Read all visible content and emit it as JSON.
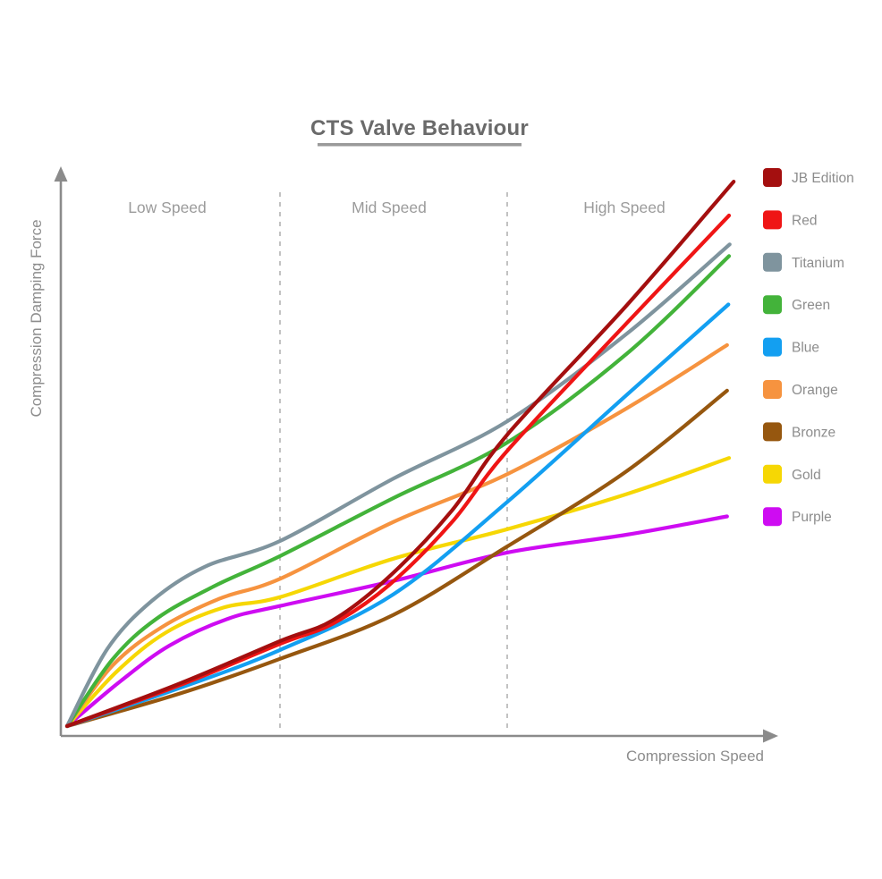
{
  "chart_data": {
    "type": "line",
    "title": "CTS Valve Behaviour",
    "xlabel": "Compression Speed",
    "ylabel": "Compression Damping Force",
    "x_range": [
      0,
      10
    ],
    "y_range": [
      0,
      10
    ],
    "axis_numeric_ticks": "none",
    "grid": false,
    "legend_position": "right",
    "zones": [
      {
        "label": "Low Speed",
        "x_start": 0.0,
        "x_end": 3.22
      },
      {
        "label": "Mid Speed",
        "x_start": 3.22,
        "x_end": 6.65
      },
      {
        "label": "High Speed",
        "x_start": 6.65,
        "x_end": 10.0
      }
    ],
    "zone_divider_x": [
      3.22,
      6.65
    ],
    "series": [
      {
        "name": "JB Edition",
        "color": "#a40f0f",
        "points": [
          [
            0,
            0
          ],
          [
            1.69,
            0.76
          ],
          [
            3.22,
            1.53
          ],
          [
            4.01,
            1.9
          ],
          [
            4.86,
            2.68
          ],
          [
            5.81,
            3.87
          ],
          [
            6.65,
            5.24
          ],
          [
            8.45,
            7.56
          ],
          [
            10.07,
            9.79
          ]
        ]
      },
      {
        "name": "Red",
        "color": "#ef1515",
        "points": [
          [
            0,
            0
          ],
          [
            1.69,
            0.73
          ],
          [
            3.22,
            1.48
          ],
          [
            4.01,
            1.84
          ],
          [
            4.86,
            2.53
          ],
          [
            5.81,
            3.66
          ],
          [
            6.65,
            4.95
          ],
          [
            8.45,
            7.24
          ],
          [
            10.0,
            9.18
          ]
        ]
      },
      {
        "name": "Titanium",
        "color": "#7f949e",
        "points": [
          [
            0,
            0
          ],
          [
            0.61,
            1.39
          ],
          [
            1.28,
            2.25
          ],
          [
            2.09,
            2.87
          ],
          [
            3.22,
            3.33
          ],
          [
            4.93,
            4.45
          ],
          [
            6.65,
            5.48
          ],
          [
            8.45,
            7.05
          ],
          [
            10.01,
            8.66
          ]
        ]
      },
      {
        "name": "Green",
        "color": "#43b33a",
        "points": [
          [
            0,
            0
          ],
          [
            0.68,
            1.19
          ],
          [
            1.35,
            1.93
          ],
          [
            2.23,
            2.52
          ],
          [
            3.22,
            3.06
          ],
          [
            4.93,
            4.1
          ],
          [
            6.65,
            5.1
          ],
          [
            8.45,
            6.69
          ],
          [
            10.0,
            8.45
          ]
        ]
      },
      {
        "name": "Blue",
        "color": "#139ff1",
        "points": [
          [
            0,
            0
          ],
          [
            1.69,
            0.68
          ],
          [
            3.22,
            1.37
          ],
          [
            4.93,
            2.37
          ],
          [
            6.65,
            4.03
          ],
          [
            8.45,
            5.95
          ],
          [
            9.99,
            7.58
          ]
        ]
      },
      {
        "name": "Orange",
        "color": "#f6933f",
        "points": [
          [
            0,
            0
          ],
          [
            0.68,
            1.08
          ],
          [
            1.42,
            1.77
          ],
          [
            2.3,
            2.29
          ],
          [
            3.22,
            2.65
          ],
          [
            4.93,
            3.67
          ],
          [
            6.65,
            4.53
          ],
          [
            8.45,
            5.71
          ],
          [
            9.97,
            6.85
          ]
        ]
      },
      {
        "name": "Bronze",
        "color": "#96570f",
        "points": [
          [
            0,
            0
          ],
          [
            1.69,
            0.58
          ],
          [
            3.22,
            1.21
          ],
          [
            4.93,
            2.0
          ],
          [
            6.65,
            3.23
          ],
          [
            8.45,
            4.58
          ],
          [
            9.97,
            6.03
          ]
        ]
      },
      {
        "name": "Gold",
        "color": "#f6d704",
        "points": [
          [
            0,
            0
          ],
          [
            0.74,
            0.97
          ],
          [
            1.49,
            1.68
          ],
          [
            2.36,
            2.13
          ],
          [
            3.22,
            2.32
          ],
          [
            4.93,
            3.01
          ],
          [
            6.65,
            3.54
          ],
          [
            8.45,
            4.17
          ],
          [
            10.0,
            4.82
          ]
        ]
      },
      {
        "name": "Purple",
        "color": "#ce0cf2",
        "points": [
          [
            0,
            0
          ],
          [
            0.81,
            0.81
          ],
          [
            1.55,
            1.45
          ],
          [
            2.43,
            1.93
          ],
          [
            3.22,
            2.16
          ],
          [
            4.93,
            2.61
          ],
          [
            6.65,
            3.12
          ],
          [
            8.45,
            3.44
          ],
          [
            9.97,
            3.77
          ]
        ]
      }
    ]
  }
}
